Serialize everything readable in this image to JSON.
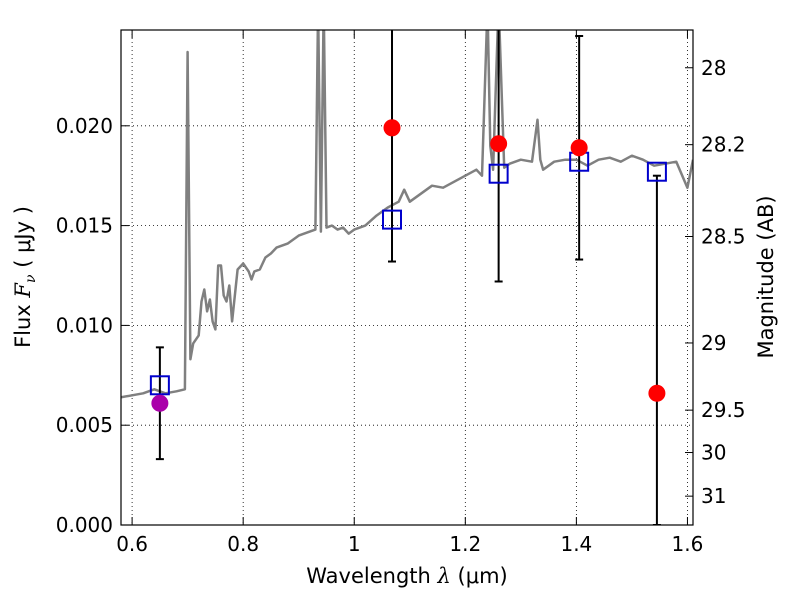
{
  "chart_data": {
    "type": "scatter",
    "xlabel_prefix": "Wavelength",
    "xlabel_symbol": "λ",
    "xlabel_unit": "(μm)",
    "ylabel_prefix": "Flux",
    "ylabel_symbol": "F",
    "ylabel_sub": "ν",
    "ylabel_unit": "( μJy )",
    "y2label": "Magnitude (AB)",
    "xlim": [
      0.58,
      1.61
    ],
    "ylim": [
      0.0,
      0.0248
    ],
    "grid": true,
    "x_ticks": [
      0.6,
      0.8,
      1.0,
      1.2,
      1.4,
      1.6
    ],
    "x_tick_labels": [
      "0.6",
      "0.8",
      "1",
      "1.2",
      "1.4",
      "1.6"
    ],
    "y_ticks": [
      0.0,
      0.005,
      0.01,
      0.015,
      0.02
    ],
    "y_tick_labels": [
      "0.000",
      "0.005",
      "0.010",
      "0.015",
      "0.020"
    ],
    "mag_ticks": [
      28,
      28.2,
      28.5,
      29,
      29.5,
      30,
      31
    ],
    "mag_tick_labels": [
      "28",
      "28.2",
      "28.5",
      "29",
      "29.5",
      "30",
      "31"
    ],
    "colors": {
      "spectrum": "#808080",
      "observed": "#ff0000",
      "observed_alt": "#aa00aa",
      "model": "#0000cc",
      "errorbar": "#000000"
    },
    "spectrum": {
      "name": "",
      "x": [
        0.58,
        0.6,
        0.62,
        0.64,
        0.66,
        0.68,
        0.695,
        0.7,
        0.705,
        0.71,
        0.72,
        0.725,
        0.73,
        0.735,
        0.74,
        0.745,
        0.75,
        0.755,
        0.76,
        0.765,
        0.77,
        0.775,
        0.78,
        0.79,
        0.8,
        0.81,
        0.815,
        0.82,
        0.83,
        0.84,
        0.85,
        0.86,
        0.88,
        0.9,
        0.92,
        0.93,
        0.935,
        0.94,
        0.945,
        0.95,
        0.96,
        0.97,
        0.98,
        0.99,
        1.0,
        1.02,
        1.04,
        1.06,
        1.08,
        1.09,
        1.1,
        1.12,
        1.14,
        1.16,
        1.18,
        1.2,
        1.22,
        1.23,
        1.24,
        1.245,
        1.25,
        1.26,
        1.27,
        1.28,
        1.3,
        1.32,
        1.33,
        1.335,
        1.34,
        1.36,
        1.38,
        1.4,
        1.42,
        1.44,
        1.46,
        1.48,
        1.5,
        1.52,
        1.54,
        1.56,
        1.58,
        1.6,
        1.61
      ],
      "y": [
        0.0064,
        0.0065,
        0.0066,
        0.0068,
        0.0066,
        0.0067,
        0.0068,
        0.0237,
        0.0083,
        0.0091,
        0.0095,
        0.0112,
        0.0118,
        0.0107,
        0.0113,
        0.0102,
        0.0098,
        0.013,
        0.013,
        0.0115,
        0.0112,
        0.012,
        0.0102,
        0.0128,
        0.0131,
        0.0127,
        0.0123,
        0.0127,
        0.0128,
        0.0134,
        0.0136,
        0.0139,
        0.0141,
        0.0145,
        0.0147,
        0.0148,
        0.026,
        0.0147,
        0.0261,
        0.0149,
        0.015,
        0.0148,
        0.0149,
        0.0146,
        0.0148,
        0.015,
        0.0155,
        0.0159,
        0.0162,
        0.0168,
        0.0162,
        0.0166,
        0.017,
        0.0169,
        0.0172,
        0.0175,
        0.0178,
        0.0175,
        0.026,
        0.019,
        0.0178,
        0.0262,
        0.0179,
        0.0181,
        0.0183,
        0.0182,
        0.0203,
        0.0183,
        0.0178,
        0.0182,
        0.0183,
        0.0183,
        0.018,
        0.0183,
        0.0184,
        0.0182,
        0.0185,
        0.0183,
        0.018,
        0.0181,
        0.0182,
        0.0169,
        0.0183
      ]
    },
    "observed": {
      "name": "",
      "x": [
        0.65,
        1.068,
        1.26,
        1.405,
        1.545
      ],
      "y": [
        0.0061,
        0.0199,
        0.0191,
        0.0189,
        0.0066
      ],
      "err_low": [
        0.0033,
        0.0132,
        0.0122,
        0.0133,
        0.0
      ],
      "err_high": [
        0.0089,
        0.0262,
        0.0262,
        0.0245,
        0.0175
      ]
    },
    "model": {
      "name": "",
      "x": [
        0.65,
        1.068,
        1.26,
        1.405,
        1.545
      ],
      "y": [
        0.007,
        0.0153,
        0.0176,
        0.0182,
        0.0177
      ]
    }
  }
}
